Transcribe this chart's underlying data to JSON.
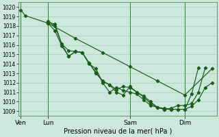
{
  "xlabel": "Pression niveau de la mer( hPa )",
  "bg_color": "#cce8dc",
  "grid_color": "#aacfc0",
  "line_color": "#1a5c1a",
  "ylim": [
    1008.5,
    1020.5
  ],
  "yticks": [
    1009,
    1010,
    1011,
    1012,
    1013,
    1014,
    1015,
    1016,
    1017,
    1018,
    1019,
    1020
  ],
  "xlim": [
    -2,
    172
  ],
  "day_positions": [
    0,
    24,
    96,
    144
  ],
  "day_labels": [
    "Ven",
    "Lun",
    "Sam",
    "Dim"
  ],
  "series": [
    {
      "x": [
        0,
        4,
        24,
        48,
        72,
        96,
        120,
        144,
        168
      ],
      "y": [
        1019.7,
        1019.1,
        1018.3,
        1016.7,
        1015.2,
        1013.7,
        1012.2,
        1010.7,
        1013.5
      ]
    },
    {
      "x": [
        24,
        30,
        36,
        42,
        48,
        54,
        60,
        66,
        72,
        78,
        84,
        90,
        96,
        102,
        108,
        114,
        120,
        126,
        132,
        138,
        144,
        150,
        156,
        162,
        168
      ],
      "y": [
        1018.4,
        1018.2,
        1016.1,
        1015.4,
        1015.3,
        1015.2,
        1014.1,
        1013.0,
        1012.2,
        1011.8,
        1011.3,
        1011.6,
        1011.5,
        1011.0,
        1010.5,
        1009.8,
        1009.4,
        1009.3,
        1009.2,
        1009.2,
        1009.2,
        1009.5,
        1010.2,
        1011.5,
        1012.0
      ]
    },
    {
      "x": [
        24,
        30,
        36,
        42,
        48,
        54,
        60,
        66,
        72,
        78,
        84,
        90,
        96,
        102,
        108,
        114,
        120,
        126,
        132,
        138,
        144,
        150,
        156,
        162
      ],
      "y": [
        1018.5,
        1018.0,
        1016.1,
        1014.8,
        1015.3,
        1015.2,
        1014.1,
        1013.1,
        1012.1,
        1011.8,
        1011.0,
        1010.7,
        1011.6,
        1011.0,
        1010.6,
        1010.0,
        1009.4,
        1009.2,
        1009.3,
        1009.6,
        1009.6,
        1009.8,
        1011.0,
        1013.6
      ]
    },
    {
      "x": [
        24,
        30,
        36,
        42,
        48,
        54,
        60,
        66,
        72,
        78,
        84,
        90,
        96,
        102,
        108,
        114,
        120,
        126,
        132,
        138,
        144,
        150,
        156
      ],
      "y": [
        1018.3,
        1017.5,
        1015.9,
        1014.8,
        1015.3,
        1015.2,
        1014.0,
        1013.5,
        1012.0,
        1011.0,
        1011.5,
        1011.2,
        1011.0,
        1010.8,
        1010.2,
        1009.6,
        1009.4,
        1009.2,
        1009.2,
        1009.2,
        1009.2,
        1010.8,
        1013.6
      ]
    }
  ]
}
